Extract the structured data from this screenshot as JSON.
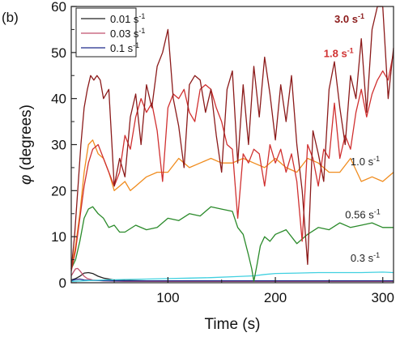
{
  "panel_label": "(b)",
  "chart_data": {
    "type": "line",
    "xlabel": "Time (s)",
    "ylabel_symbol": "φ",
    "ylabel_rest": " (degrees)",
    "xlim": [
      10,
      310
    ],
    "ylim": [
      0,
      60
    ],
    "xticks": [
      100,
      200,
      300
    ],
    "yticks": [
      0,
      10,
      20,
      30,
      40,
      50,
      60
    ],
    "grid": false,
    "legend": {
      "placement": "top-left",
      "entries": [
        {
          "base": "0.01 s",
          "sup": "-1",
          "color": "#222222"
        },
        {
          "base": "0.03 s",
          "sup": "-1",
          "color": "#c0506e"
        },
        {
          "base": "0.1 s",
          "sup": "-1",
          "color": "#1f2a8a"
        }
      ]
    },
    "annotations": [
      {
        "base": "3.0 s",
        "sup": "-1",
        "color": "#8b1a1a",
        "bold": true,
        "at": [
          255,
          56.5
        ]
      },
      {
        "base": "1.8 s",
        "sup": "-1",
        "color": "#d03030",
        "bold": true,
        "at": [
          245,
          49
        ]
      },
      {
        "base": "1.0 s",
        "sup": "-1",
        "color": "#222222",
        "bold": false,
        "at": [
          270,
          25.5
        ]
      },
      {
        "base": "0.56 s",
        "sup": "-1",
        "color": "#222222",
        "bold": false,
        "at": [
          265,
          14
        ]
      },
      {
        "base": "0.3 s",
        "sup": "-1",
        "color": "#222222",
        "bold": false,
        "at": [
          270,
          4.6
        ]
      }
    ],
    "series": [
      {
        "key": "s001",
        "color": "#222222",
        "x": [
          10,
          14,
          18,
          22,
          26,
          30,
          35,
          40,
          50,
          60,
          80,
          100,
          150,
          200,
          250,
          310
        ],
        "y": [
          0.6,
          0.9,
          1.4,
          2.1,
          2.2,
          2.0,
          1.4,
          1.0,
          0.6,
          0.5,
          0.4,
          0.3,
          0.3,
          0.3,
          0.3,
          0.3
        ]
      },
      {
        "key": "s003",
        "color": "#c0506e",
        "x": [
          10,
          12,
          14,
          16,
          18,
          20,
          22,
          25,
          30,
          40,
          60,
          100,
          150,
          200,
          250,
          310
        ],
        "y": [
          1.5,
          2.3,
          3.0,
          3.1,
          2.6,
          2.0,
          1.4,
          0.9,
          0.6,
          0.4,
          0.3,
          0.3,
          0.3,
          0.3,
          0.3,
          0.3
        ]
      },
      {
        "key": "s01",
        "color": "#1f2a8a",
        "x": [
          10,
          14,
          18,
          22,
          30,
          50,
          100,
          150,
          200,
          250,
          310
        ],
        "y": [
          0.5,
          0.7,
          0.8,
          0.6,
          0.5,
          0.4,
          0.4,
          0.4,
          0.4,
          0.4,
          0.4
        ]
      },
      {
        "key": "s03",
        "color": "#40d0e0",
        "x": [
          10,
          20,
          30,
          40,
          60,
          80,
          100,
          120,
          140,
          160,
          180,
          190,
          200,
          220,
          240,
          260,
          280,
          300,
          310
        ],
        "y": [
          0.3,
          0.4,
          0.5,
          0.6,
          0.7,
          0.8,
          0.9,
          1.0,
          1.1,
          1.3,
          1.5,
          1.8,
          2.0,
          2.1,
          2.2,
          2.2,
          2.2,
          2.3,
          2.2
        ]
      },
      {
        "key": "s056",
        "color": "#2a8a2a",
        "x": [
          10,
          14,
          18,
          22,
          26,
          30,
          35,
          40,
          45,
          50,
          55,
          60,
          70,
          80,
          90,
          100,
          110,
          120,
          130,
          140,
          150,
          160,
          165,
          170,
          175,
          178,
          180,
          183,
          186,
          190,
          195,
          200,
          210,
          220,
          230,
          240,
          250,
          260,
          270,
          280,
          290,
          300,
          310
        ],
        "y": [
          3,
          5,
          9,
          14,
          16,
          16.5,
          15,
          14,
          12,
          12.5,
          11,
          11,
          12.5,
          11.5,
          12,
          14,
          13.5,
          15,
          14.5,
          16.5,
          16,
          15.5,
          12,
          10.5,
          6,
          3,
          0.3,
          4,
          8,
          10,
          9,
          10.5,
          11.5,
          8.5,
          10.5,
          12,
          11.5,
          13,
          12,
          12.5,
          13,
          12,
          12
        ]
      },
      {
        "key": "s10",
        "color": "#f08c1e",
        "x": [
          10,
          14,
          18,
          22,
          26,
          30,
          35,
          40,
          45,
          50,
          55,
          60,
          65,
          70,
          80,
          90,
          100,
          110,
          120,
          130,
          140,
          150,
          160,
          170,
          180,
          190,
          200,
          210,
          220,
          230,
          240,
          250,
          260,
          270,
          280,
          290,
          300,
          310
        ],
        "y": [
          3,
          8,
          15,
          24,
          30,
          31,
          28,
          27,
          24,
          20,
          21,
          22,
          20,
          21,
          23,
          24,
          24,
          27,
          25,
          26,
          27,
          26,
          26,
          27,
          26,
          25,
          27,
          25,
          24,
          27,
          26,
          24,
          24,
          27,
          22,
          23,
          22,
          24
        ]
      },
      {
        "key": "s18",
        "color": "#d03030",
        "x": [
          10,
          14,
          18,
          22,
          26,
          30,
          35,
          40,
          45,
          50,
          55,
          60,
          65,
          70,
          75,
          80,
          85,
          90,
          95,
          100,
          105,
          110,
          115,
          120,
          125,
          130,
          135,
          140,
          145,
          150,
          155,
          160,
          165,
          170,
          175,
          180,
          185,
          190,
          195,
          200,
          205,
          210,
          215,
          220,
          225,
          230,
          235,
          240,
          245,
          250,
          255,
          260,
          265,
          270,
          275,
          280,
          285,
          290,
          295,
          300,
          305,
          310
        ],
        "y": [
          2.5,
          7,
          14,
          21,
          26,
          29,
          30,
          27,
          24,
          21,
          24,
          32,
          29,
          36,
          40,
          37,
          39,
          33,
          22,
          38,
          41,
          40,
          42,
          37,
          35,
          42,
          43,
          42,
          38,
          35,
          30,
          29,
          14,
          28,
          26,
          29,
          28,
          21,
          30,
          26,
          29,
          24,
          28,
          22,
          9,
          30,
          27,
          21,
          29,
          27,
          39,
          27,
          32,
          29,
          37,
          42,
          36,
          41,
          44,
          46,
          44,
          50
        ]
      },
      {
        "key": "s30",
        "color": "#8b1a1a",
        "x": [
          10,
          13,
          16,
          19,
          22,
          25,
          28,
          31,
          34,
          37,
          40,
          45,
          50,
          55,
          60,
          65,
          70,
          75,
          80,
          85,
          90,
          95,
          100,
          105,
          110,
          115,
          120,
          125,
          130,
          135,
          140,
          145,
          150,
          155,
          160,
          165,
          170,
          175,
          180,
          185,
          190,
          195,
          200,
          205,
          210,
          215,
          220,
          225,
          230,
          235,
          240,
          245,
          250,
          255,
          260,
          265,
          270,
          275,
          280,
          285,
          290,
          295,
          300,
          305,
          310
        ],
        "y": [
          3,
          10,
          20,
          30,
          38,
          42,
          45,
          44,
          45,
          44,
          40,
          42,
          21,
          27,
          23,
          36,
          41,
          30,
          43,
          38,
          47,
          50,
          55,
          40,
          34,
          25,
          43,
          45,
          44,
          37,
          42,
          32,
          24,
          42,
          46,
          26,
          43,
          30,
          47,
          36,
          49,
          41,
          31,
          43,
          35,
          45,
          30,
          20,
          4,
          33,
          28,
          22,
          42,
          48,
          38,
          30,
          45,
          40,
          53,
          37,
          55,
          60,
          60,
          40,
          51
        ]
      }
    ]
  }
}
